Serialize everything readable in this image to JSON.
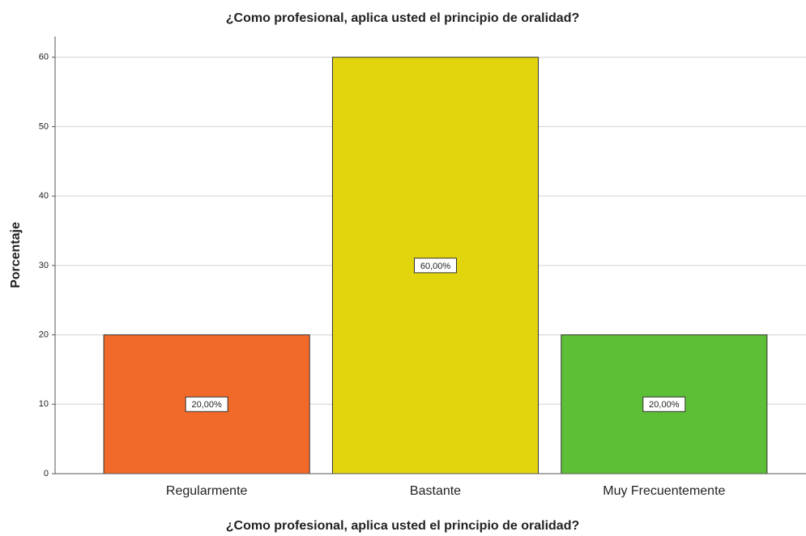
{
  "chart_data": {
    "type": "bar",
    "title": "¿Como profesional, aplica usted el principio de oralidad?",
    "xlabel": "¿Como profesional, aplica usted el principio de oralidad?",
    "ylabel": "Porcentaje",
    "categories": [
      "Regularmente",
      "Bastante",
      "Muy Frecuentemente"
    ],
    "values": [
      20,
      60,
      20
    ],
    "value_labels": [
      "20,00%",
      "60,00%",
      "20,00%"
    ],
    "colors": [
      "#f26a2a",
      "#e2d50e",
      "#5dbf35"
    ],
    "ylim": [
      0,
      63
    ],
    "yticks": [
      0,
      10,
      20,
      30,
      40,
      50,
      60
    ],
    "grid": true
  }
}
